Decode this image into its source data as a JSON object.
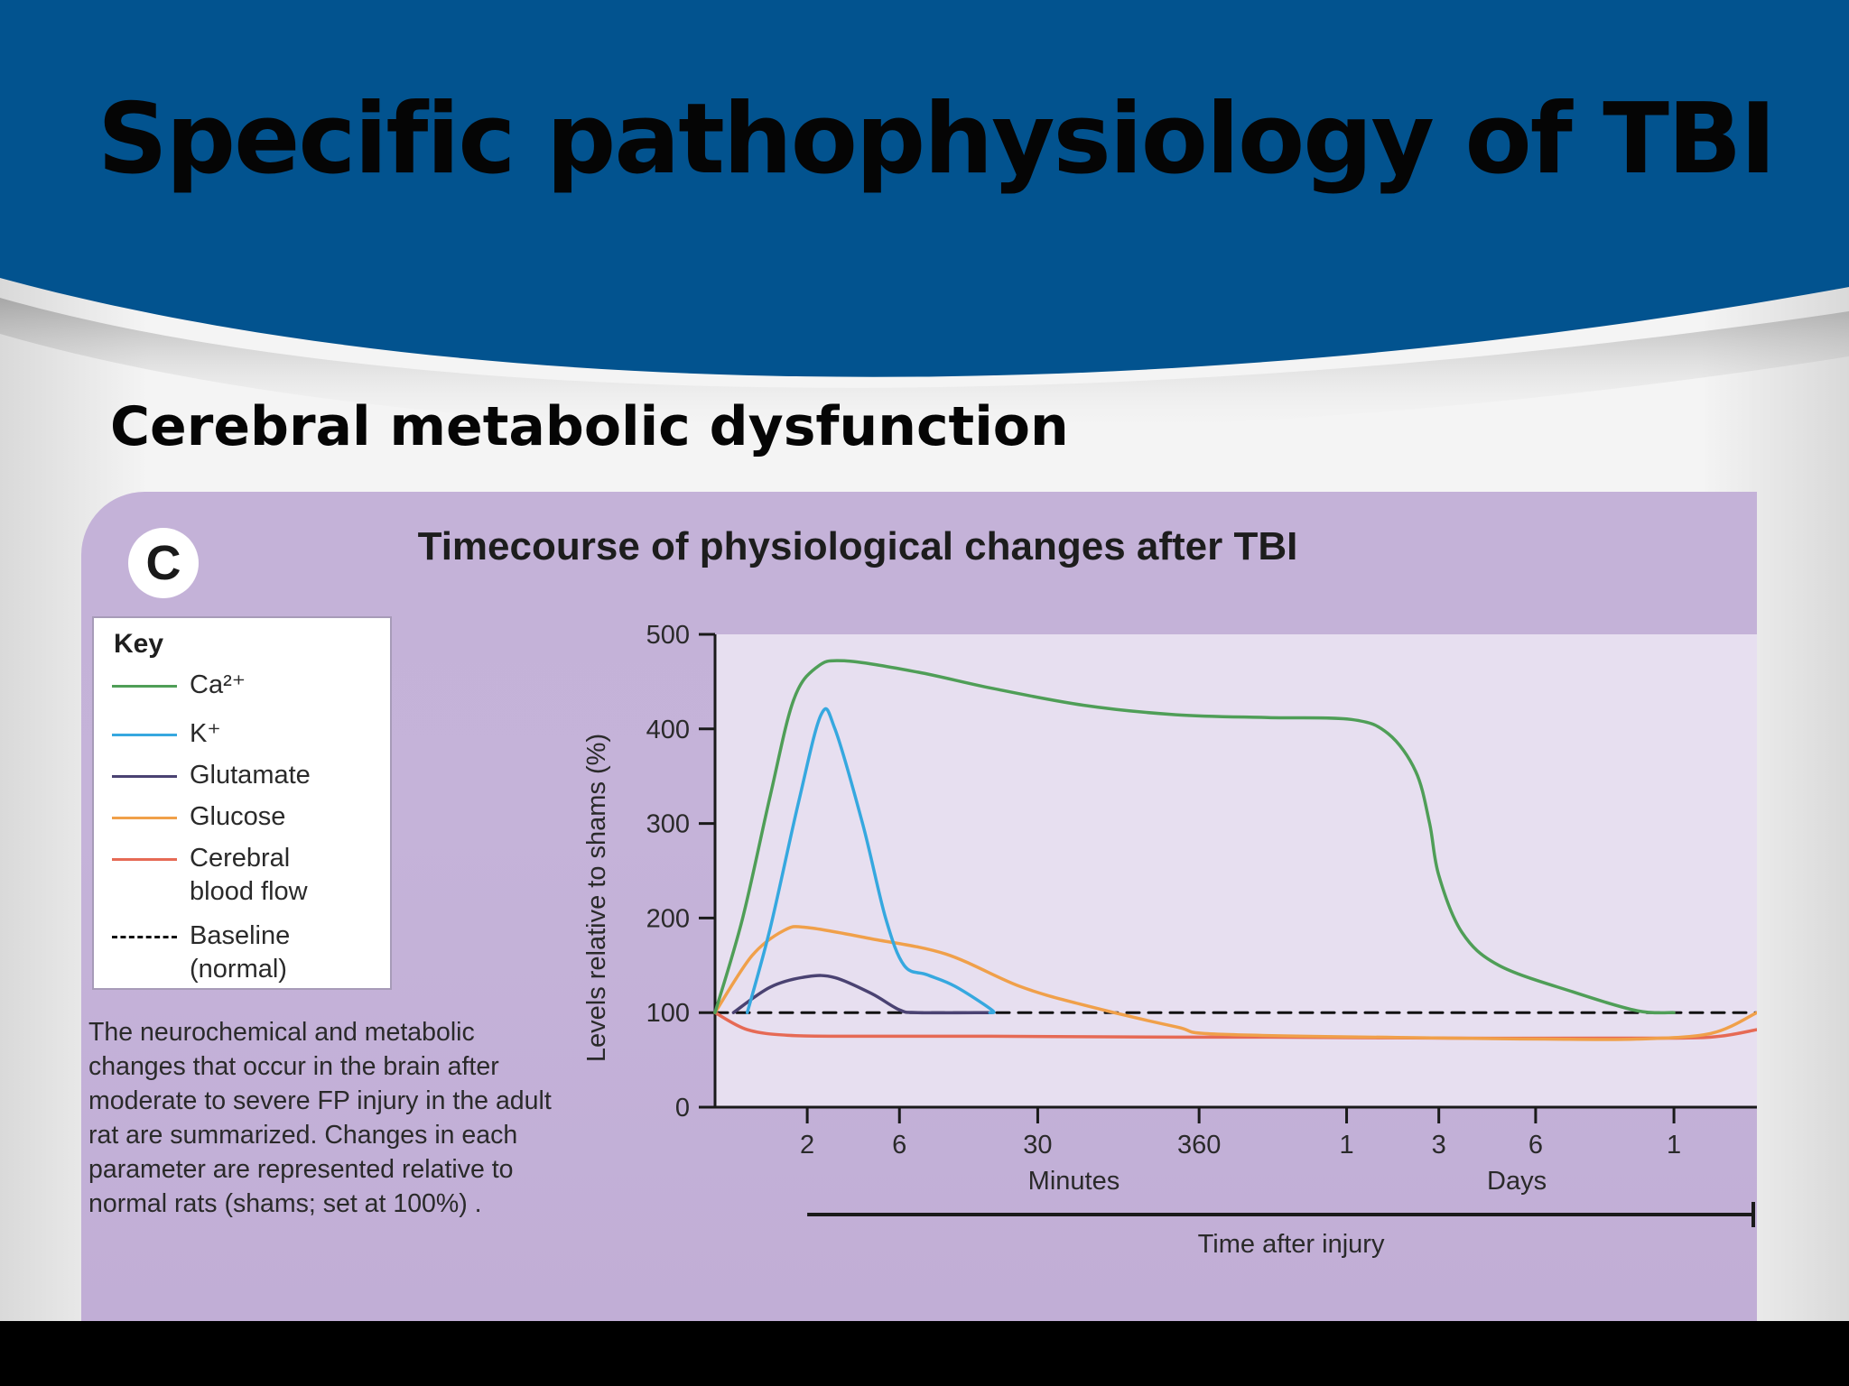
{
  "slide": {
    "title": "Specific pathophysiology of TBI",
    "subtitle": "Cerebral metabolic dysfunction",
    "colors": {
      "header": "#02538f",
      "background": "#f1f1f1",
      "panel": "#c4b2d8",
      "footer": "#000000"
    }
  },
  "figure": {
    "panel_letter": "C",
    "caption": "The neurochemical and metabolic changes that occur in the brain after moderate to severe FP injury in the adult rat are summarized. Changes in each parameter are represented relative to normal rats (shams; set at 100%) ."
  },
  "key": {
    "title": "Key",
    "items": [
      {
        "id": "ca",
        "label": "Ca²⁺",
        "color": "#4f9e57",
        "dash": "solid"
      },
      {
        "id": "k",
        "label": "K⁺",
        "color": "#36a8df",
        "dash": "solid"
      },
      {
        "id": "glu",
        "label": "Glutamate",
        "color": "#4a4272",
        "dash": "solid"
      },
      {
        "id": "glc",
        "label": "Glucose",
        "color": "#f0a04a",
        "dash": "solid"
      },
      {
        "id": "cbf",
        "label": "Cerebral\nblood flow",
        "color": "#e66a55",
        "dash": "solid"
      },
      {
        "id": "base",
        "label": "Baseline\n(normal)",
        "color": "#111111",
        "dash": "dashed"
      }
    ]
  },
  "chart_data": {
    "type": "line",
    "title": "Timecourse of physiological changes after TBI",
    "ylabel": "Levels relative to shams (%)",
    "xlabel": "Time after injury",
    "ylim": [
      0,
      500
    ],
    "y_ticks": [
      0,
      100,
      200,
      300,
      400,
      500
    ],
    "x_ticks": [
      "2",
      "6",
      "30",
      "360",
      "1",
      "3",
      "6",
      "1"
    ],
    "x_unit_labels": [
      {
        "text": "Minutes",
        "x": 3.5
      },
      {
        "text": "Days",
        "x": 8.5
      }
    ],
    "x_note": "x values are ordinal positions along the timeline: 0 = injury, 1 = 2 min, 2 = 6 min, 3.5 = 30 min, 5.25 = 360 min, 6.85 = 1 day, 7.85 = 3 days, 8.9 = 6 days, 10.4 = last tick",
    "xlim": [
      0,
      11.3
    ],
    "series": [
      {
        "name": "Ca²⁺",
        "color": "#4f9e57",
        "points": [
          [
            0,
            100
          ],
          [
            0.3,
            200
          ],
          [
            0.6,
            330
          ],
          [
            0.85,
            430
          ],
          [
            1.1,
            465
          ],
          [
            1.4,
            472
          ],
          [
            2.2,
            460
          ],
          [
            3,
            443
          ],
          [
            4,
            425
          ],
          [
            5,
            415
          ],
          [
            6,
            412
          ],
          [
            6.9,
            410
          ],
          [
            7.3,
            395
          ],
          [
            7.6,
            355
          ],
          [
            7.75,
            300
          ],
          [
            7.85,
            245
          ],
          [
            8.1,
            185
          ],
          [
            8.5,
            150
          ],
          [
            9.3,
            122
          ],
          [
            10,
            102
          ],
          [
            10.4,
            100
          ]
        ]
      },
      {
        "name": "K⁺",
        "color": "#36a8df",
        "points": [
          [
            0.35,
            100
          ],
          [
            0.6,
            190
          ],
          [
            0.9,
            320
          ],
          [
            1.15,
            415
          ],
          [
            1.3,
            400
          ],
          [
            1.6,
            300
          ],
          [
            1.85,
            200
          ],
          [
            2.05,
            150
          ],
          [
            2.3,
            140
          ],
          [
            2.6,
            128
          ],
          [
            3,
            103
          ],
          [
            2.98,
            100
          ]
        ]
      },
      {
        "name": "Glutamate",
        "color": "#4a4272",
        "points": [
          [
            0.2,
            100
          ],
          [
            0.6,
            127
          ],
          [
            1,
            138
          ],
          [
            1.3,
            137
          ],
          [
            1.7,
            120
          ],
          [
            2,
            103
          ],
          [
            2.2,
            100
          ],
          [
            3,
            100
          ]
        ]
      },
      {
        "name": "Glucose",
        "color": "#f0a04a",
        "points": [
          [
            0,
            100
          ],
          [
            0.4,
            160
          ],
          [
            0.75,
            187
          ],
          [
            1,
            190
          ],
          [
            1.7,
            178
          ],
          [
            2.5,
            162
          ],
          [
            3.3,
            128
          ],
          [
            4,
            108
          ],
          [
            5,
            85
          ],
          [
            5.5,
            77
          ],
          [
            8,
            73
          ],
          [
            9,
            72
          ],
          [
            10,
            72
          ],
          [
            10.8,
            78
          ],
          [
            11.3,
            100
          ]
        ]
      },
      {
        "name": "Cerebral blood flow",
        "color": "#e66a55",
        "points": [
          [
            0,
            100
          ],
          [
            0.35,
            82
          ],
          [
            0.8,
            76
          ],
          [
            1.5,
            75
          ],
          [
            3,
            75
          ],
          [
            5,
            74
          ],
          [
            6,
            74
          ],
          [
            8,
            73
          ],
          [
            10,
            73
          ],
          [
            10.8,
            74
          ],
          [
            11.3,
            82
          ]
        ]
      },
      {
        "name": "Baseline (normal)",
        "color": "#111111",
        "dashed": true,
        "points": [
          [
            0,
            100
          ],
          [
            11.3,
            100
          ]
        ]
      }
    ]
  }
}
